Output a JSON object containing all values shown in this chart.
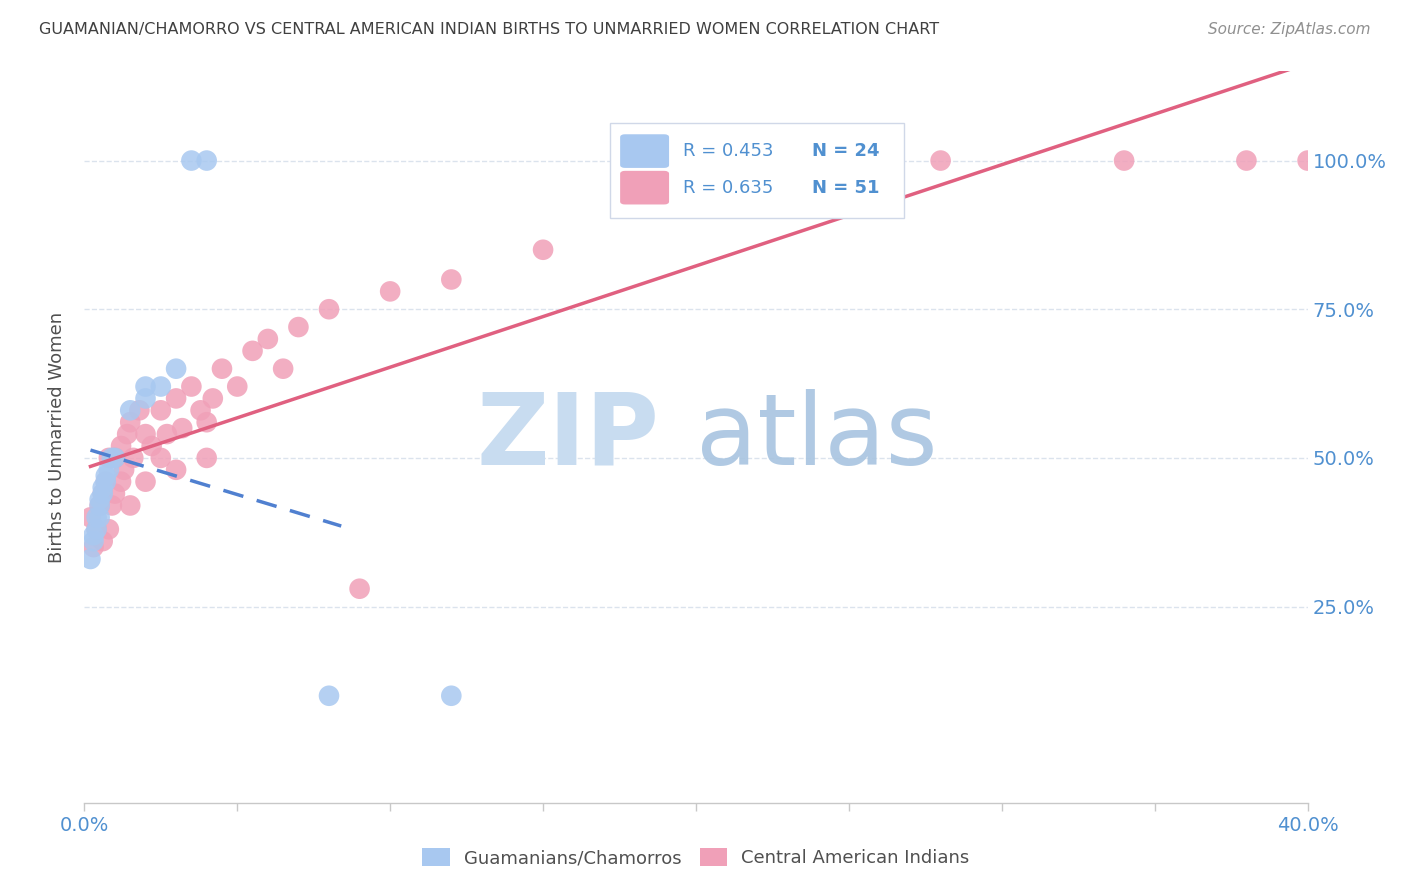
{
  "title": "GUAMANIAN/CHAMORRO VS CENTRAL AMERICAN INDIAN BIRTHS TO UNMARRIED WOMEN CORRELATION CHART",
  "source": "Source: ZipAtlas.com",
  "ylabel": "Births to Unmarried Women",
  "legend_blue_r": "R = 0.453",
  "legend_blue_n": "N = 24",
  "legend_pink_r": "R = 0.635",
  "legend_pink_n": "N = 51",
  "legend_label_blue": "Guamanians/Chamorros",
  "legend_label_pink": "Central American Indians",
  "color_blue": "#A8C8F0",
  "color_pink": "#F0A0B8",
  "color_blue_line": "#5080D0",
  "color_pink_line": "#E06080",
  "color_blue_line_dashed": "#A0A0B0",
  "color_axis_label": "#5090D0",
  "color_title": "#404040",
  "color_source": "#909090",
  "color_grid": "#D8E0EC",
  "xlim": [
    0.0,
    0.4
  ],
  "ylim": [
    -0.08,
    1.15
  ],
  "xtick_positions": [
    0.0,
    0.05,
    0.1,
    0.15,
    0.2,
    0.25,
    0.3,
    0.35,
    0.4
  ],
  "ytick_positions": [
    0.25,
    0.5,
    0.75,
    1.0
  ],
  "ytick_labels": [
    "25.0%",
    "50.0%",
    "75.0%",
    "100.0%"
  ],
  "blue_points_x": [
    0.002,
    0.003,
    0.003,
    0.004,
    0.004,
    0.005,
    0.005,
    0.005,
    0.006,
    0.006,
    0.007,
    0.007,
    0.008,
    0.009,
    0.01,
    0.015,
    0.02,
    0.02,
    0.025,
    0.03,
    0.035,
    0.04,
    0.08,
    0.12
  ],
  "blue_points_y": [
    0.33,
    0.36,
    0.37,
    0.38,
    0.4,
    0.4,
    0.42,
    0.43,
    0.44,
    0.45,
    0.46,
    0.47,
    0.48,
    0.5,
    0.5,
    0.58,
    0.6,
    0.62,
    0.62,
    0.65,
    1.0,
    1.0,
    0.1,
    0.1
  ],
  "pink_points_x": [
    0.002,
    0.003,
    0.004,
    0.005,
    0.006,
    0.006,
    0.007,
    0.008,
    0.008,
    0.009,
    0.01,
    0.01,
    0.012,
    0.012,
    0.013,
    0.014,
    0.015,
    0.015,
    0.016,
    0.018,
    0.02,
    0.02,
    0.022,
    0.025,
    0.025,
    0.027,
    0.03,
    0.03,
    0.032,
    0.035,
    0.038,
    0.04,
    0.04,
    0.042,
    0.045,
    0.05,
    0.055,
    0.06,
    0.065,
    0.07,
    0.08,
    0.09,
    0.1,
    0.12,
    0.15,
    0.18,
    0.22,
    0.28,
    0.34,
    0.38,
    0.4
  ],
  "pink_points_y": [
    0.4,
    0.35,
    0.38,
    0.42,
    0.36,
    0.44,
    0.46,
    0.38,
    0.5,
    0.42,
    0.44,
    0.5,
    0.46,
    0.52,
    0.48,
    0.54,
    0.42,
    0.56,
    0.5,
    0.58,
    0.46,
    0.54,
    0.52,
    0.5,
    0.58,
    0.54,
    0.48,
    0.6,
    0.55,
    0.62,
    0.58,
    0.5,
    0.56,
    0.6,
    0.65,
    0.62,
    0.68,
    0.7,
    0.65,
    0.72,
    0.75,
    0.28,
    0.78,
    0.8,
    0.85,
    1.0,
    1.0,
    1.0,
    1.0,
    1.0,
    1.0
  ],
  "figsize": [
    14.06,
    8.92
  ],
  "dpi": 100
}
